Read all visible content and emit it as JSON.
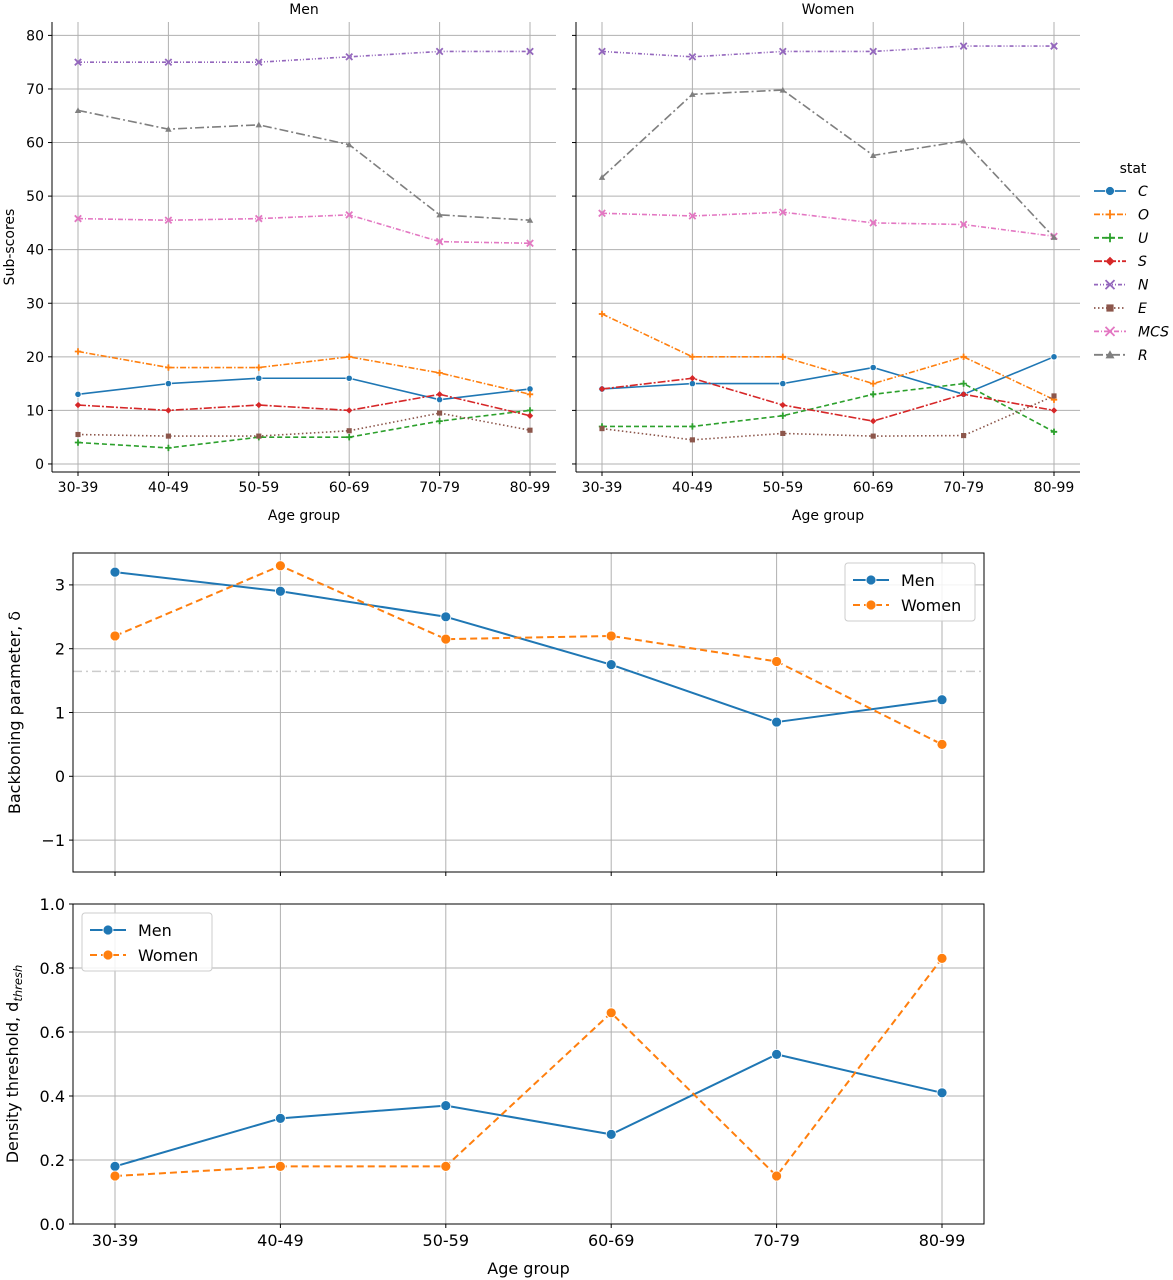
{
  "colors": {
    "C": "#1f77b4",
    "O": "#ff7f0e",
    "U": "#2ca02c",
    "S": "#d62728",
    "N": "#9467bd",
    "E": "#8c564b",
    "MCS": "#e377c2",
    "R": "#7f7f7f",
    "Men": "#1f77b4",
    "Women": "#ff7f0e",
    "reference": "#cccccc",
    "grid": "#b0b0b0"
  },
  "chart_data": [
    {
      "type": "line",
      "title": "Men",
      "xlabel": "Age group",
      "ylabel": "Sub-scores",
      "categories": [
        "30-39",
        "40-49",
        "50-59",
        "60-69",
        "70-79",
        "80-99"
      ],
      "ylim": [
        -1.5,
        82.5
      ],
      "yticks": [
        0,
        10,
        20,
        30,
        40,
        50,
        60,
        70,
        80
      ],
      "grid": true,
      "series": [
        {
          "name": "C",
          "values": [
            13,
            15,
            16,
            16,
            12,
            14
          ]
        },
        {
          "name": "O",
          "values": [
            21,
            18,
            18,
            20,
            17,
            13
          ]
        },
        {
          "name": "U",
          "values": [
            4,
            3,
            5,
            5,
            8,
            10
          ]
        },
        {
          "name": "S",
          "values": [
            11,
            10,
            11,
            10,
            13,
            9
          ]
        },
        {
          "name": "N",
          "values": [
            75,
            75,
            75,
            76,
            77,
            77
          ]
        },
        {
          "name": "E",
          "values": [
            5.5,
            5.2,
            5.2,
            6.2,
            9.5,
            6.3
          ]
        },
        {
          "name": "MCS",
          "values": [
            45.8,
            45.5,
            45.8,
            46.5,
            41.5,
            41.2
          ]
        },
        {
          "name": "R",
          "values": [
            66,
            62.5,
            63.3,
            59.6,
            46.5,
            45.5
          ]
        }
      ]
    },
    {
      "type": "line",
      "title": "Women",
      "xlabel": "Age group",
      "ylabel": "",
      "categories": [
        "30-39",
        "40-49",
        "50-59",
        "60-69",
        "70-79",
        "80-99"
      ],
      "ylim": [
        -1.5,
        82.5
      ],
      "grid": true,
      "legend": {
        "title": "stat",
        "placement": "right",
        "entries": [
          "C",
          "O",
          "U",
          "S",
          "N",
          "E",
          "MCS",
          "R"
        ]
      },
      "series": [
        {
          "name": "C",
          "values": [
            14,
            15,
            15,
            18,
            13,
            20
          ]
        },
        {
          "name": "O",
          "values": [
            28,
            20,
            20,
            15,
            20,
            12
          ]
        },
        {
          "name": "U",
          "values": [
            7,
            7,
            9,
            13,
            15,
            6
          ]
        },
        {
          "name": "S",
          "values": [
            14,
            16,
            11,
            8,
            13,
            10
          ]
        },
        {
          "name": "N",
          "values": [
            77,
            76,
            77,
            77,
            78,
            78
          ]
        },
        {
          "name": "E",
          "values": [
            6.6,
            4.5,
            5.7,
            5.2,
            5.3,
            12.7
          ]
        },
        {
          "name": "MCS",
          "values": [
            46.8,
            46.3,
            47,
            45,
            44.7,
            42.5
          ]
        },
        {
          "name": "R",
          "values": [
            53.5,
            69,
            69.8,
            57.6,
            60.3,
            42.3
          ]
        }
      ]
    },
    {
      "type": "line",
      "ylabel": "Backboning parameter, δ",
      "categories": [
        "30-39",
        "40-49",
        "50-59",
        "60-69",
        "70-79",
        "80-99"
      ],
      "ylim": [
        -1.5,
        3.5
      ],
      "yticks": [
        -1,
        0,
        1,
        2,
        3
      ],
      "ytick_labels": [
        "−1",
        "0",
        "1",
        "2",
        "3"
      ],
      "reference_line": 1.645,
      "grid": true,
      "legend": {
        "placement": "top-right"
      },
      "series": [
        {
          "name": "Men",
          "values": [
            3.2,
            2.9,
            2.5,
            1.75,
            0.85,
            1.2
          ]
        },
        {
          "name": "Women",
          "values": [
            2.2,
            3.3,
            2.15,
            2.2,
            1.8,
            0.5
          ]
        }
      ]
    },
    {
      "type": "line",
      "xlabel": "Age group",
      "ylabel": "Density threshold, d",
      "ylabel_subscript": "thresh",
      "categories": [
        "30-39",
        "40-49",
        "50-59",
        "60-69",
        "70-79",
        "80-99"
      ],
      "ylim": [
        0,
        1
      ],
      "yticks": [
        0,
        0.2,
        0.4,
        0.6,
        0.8,
        1
      ],
      "ytick_labels": [
        "0.0",
        "0.2",
        "0.4",
        "0.6",
        "0.8",
        "1.0"
      ],
      "grid": true,
      "legend": {
        "placement": "top-left"
      },
      "series": [
        {
          "name": "Men",
          "values": [
            0.18,
            0.33,
            0.37,
            0.28,
            0.53,
            0.41
          ]
        },
        {
          "name": "Women",
          "values": [
            0.15,
            0.18,
            0.18,
            0.66,
            0.15,
            0.83
          ]
        }
      ]
    }
  ]
}
